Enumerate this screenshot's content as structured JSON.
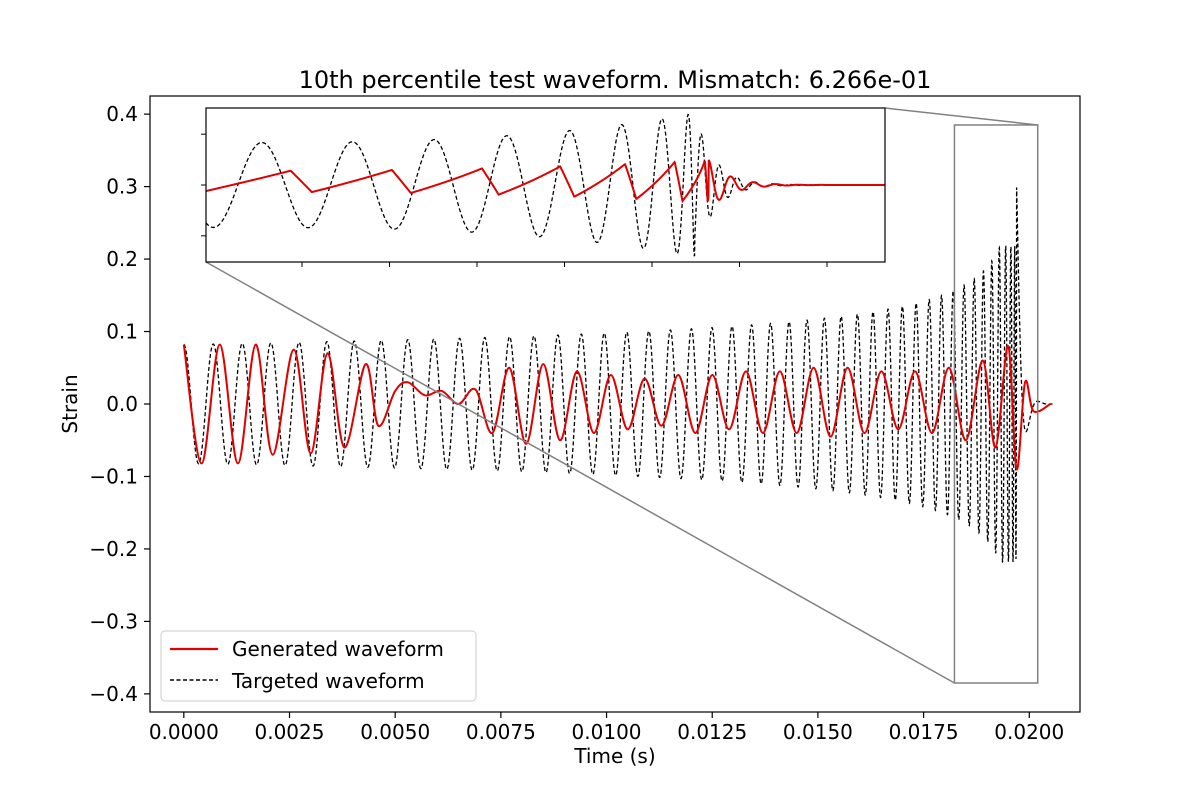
{
  "chart_data": {
    "type": "line",
    "title": "10th percentile test waveform. Mismatch: 6.266e-01",
    "xlabel": "Time (s)",
    "ylabel": "Strain",
    "xlim": [
      -0.0008,
      0.0212
    ],
    "ylim": [
      -0.425,
      0.425
    ],
    "xticks": [
      0.0,
      0.0025,
      0.005,
      0.0075,
      0.01,
      0.0125,
      0.015,
      0.0175,
      0.02
    ],
    "xtick_labels": [
      "0.0000",
      "0.0025",
      "0.0050",
      "0.0075",
      "0.0100",
      "0.0125",
      "0.0150",
      "0.0175",
      "0.0200"
    ],
    "yticks": [
      -0.4,
      -0.3,
      -0.2,
      -0.1,
      0.0,
      0.1,
      0.2,
      0.3,
      0.4
    ],
    "ytick_labels": [
      "−0.4",
      "−0.3",
      "−0.2",
      "−0.1",
      "0.0",
      "0.1",
      "0.2",
      "0.3",
      "0.4"
    ],
    "grid": false,
    "legend_position": "lower-left",
    "series": [
      {
        "name": "Generated waveform",
        "color": "#e00000",
        "style": "solid",
        "note_shape": "chirp that tracks the target for ~4 cycles then degrades to a low-amplitude, irregular oscillation",
        "points": [
          [
            0.0,
            0.082
          ],
          [
            0.00042,
            -0.082
          ],
          [
            0.00085,
            0.082
          ],
          [
            0.00128,
            -0.082
          ],
          [
            0.0017,
            0.082
          ],
          [
            0.0021,
            -0.07
          ],
          [
            0.0026,
            0.075
          ],
          [
            0.003,
            -0.068
          ],
          [
            0.0034,
            0.07
          ],
          [
            0.0038,
            -0.06
          ],
          [
            0.0043,
            0.055
          ],
          [
            0.0046,
            -0.03
          ],
          [
            0.005,
            0.018
          ],
          [
            0.0053,
            0.03
          ],
          [
            0.0057,
            0.012
          ],
          [
            0.0061,
            0.018
          ],
          [
            0.0065,
            0.0
          ],
          [
            0.0069,
            0.02
          ],
          [
            0.0073,
            -0.04
          ],
          [
            0.0077,
            0.05
          ],
          [
            0.0081,
            -0.055
          ],
          [
            0.0085,
            0.055
          ],
          [
            0.0089,
            -0.05
          ],
          [
            0.0093,
            0.045
          ],
          [
            0.0097,
            -0.04
          ],
          [
            0.0101,
            0.04
          ],
          [
            0.0105,
            -0.035
          ],
          [
            0.0109,
            0.035
          ],
          [
            0.0113,
            -0.03
          ],
          [
            0.0117,
            0.04
          ],
          [
            0.0121,
            -0.04
          ],
          [
            0.0125,
            0.04
          ],
          [
            0.0129,
            -0.035
          ],
          [
            0.0133,
            0.045
          ],
          [
            0.0137,
            -0.04
          ],
          [
            0.0141,
            0.045
          ],
          [
            0.0145,
            -0.04
          ],
          [
            0.0149,
            0.05
          ],
          [
            0.0153,
            -0.045
          ],
          [
            0.0157,
            0.05
          ],
          [
            0.0161,
            -0.04
          ],
          [
            0.0165,
            0.045
          ],
          [
            0.0169,
            -0.035
          ],
          [
            0.0173,
            0.045
          ],
          [
            0.0177,
            -0.04
          ],
          [
            0.0181,
            0.05
          ],
          [
            0.0185,
            -0.05
          ],
          [
            0.0189,
            0.06
          ],
          [
            0.0192,
            -0.06
          ],
          [
            0.0195,
            0.08
          ],
          [
            0.0197,
            -0.09
          ],
          [
            0.0199,
            0.03
          ],
          [
            0.0201,
            -0.01
          ],
          [
            0.0205,
            0.0
          ]
        ]
      },
      {
        "name": "Targeted waveform",
        "color": "#000000",
        "style": "dashed",
        "note_shape": "inspiral chirp: amplitude grows from 0.082 to ~0.3 and frequency increases until merger near t=0.0197 s, then ringdown to zero",
        "start_amplitude": 0.082,
        "peak_amplitude": 0.3,
        "cycles_to_merger": 45,
        "merger_time": 0.0197,
        "end_time": 0.0205
      }
    ],
    "inset": {
      "description": "zoom of the region near merger",
      "zoom_xlim": [
        0.01823,
        0.0202
      ],
      "zoom_ylim": [
        -0.385,
        0.385
      ],
      "has_ticks_without_labels": true
    }
  }
}
